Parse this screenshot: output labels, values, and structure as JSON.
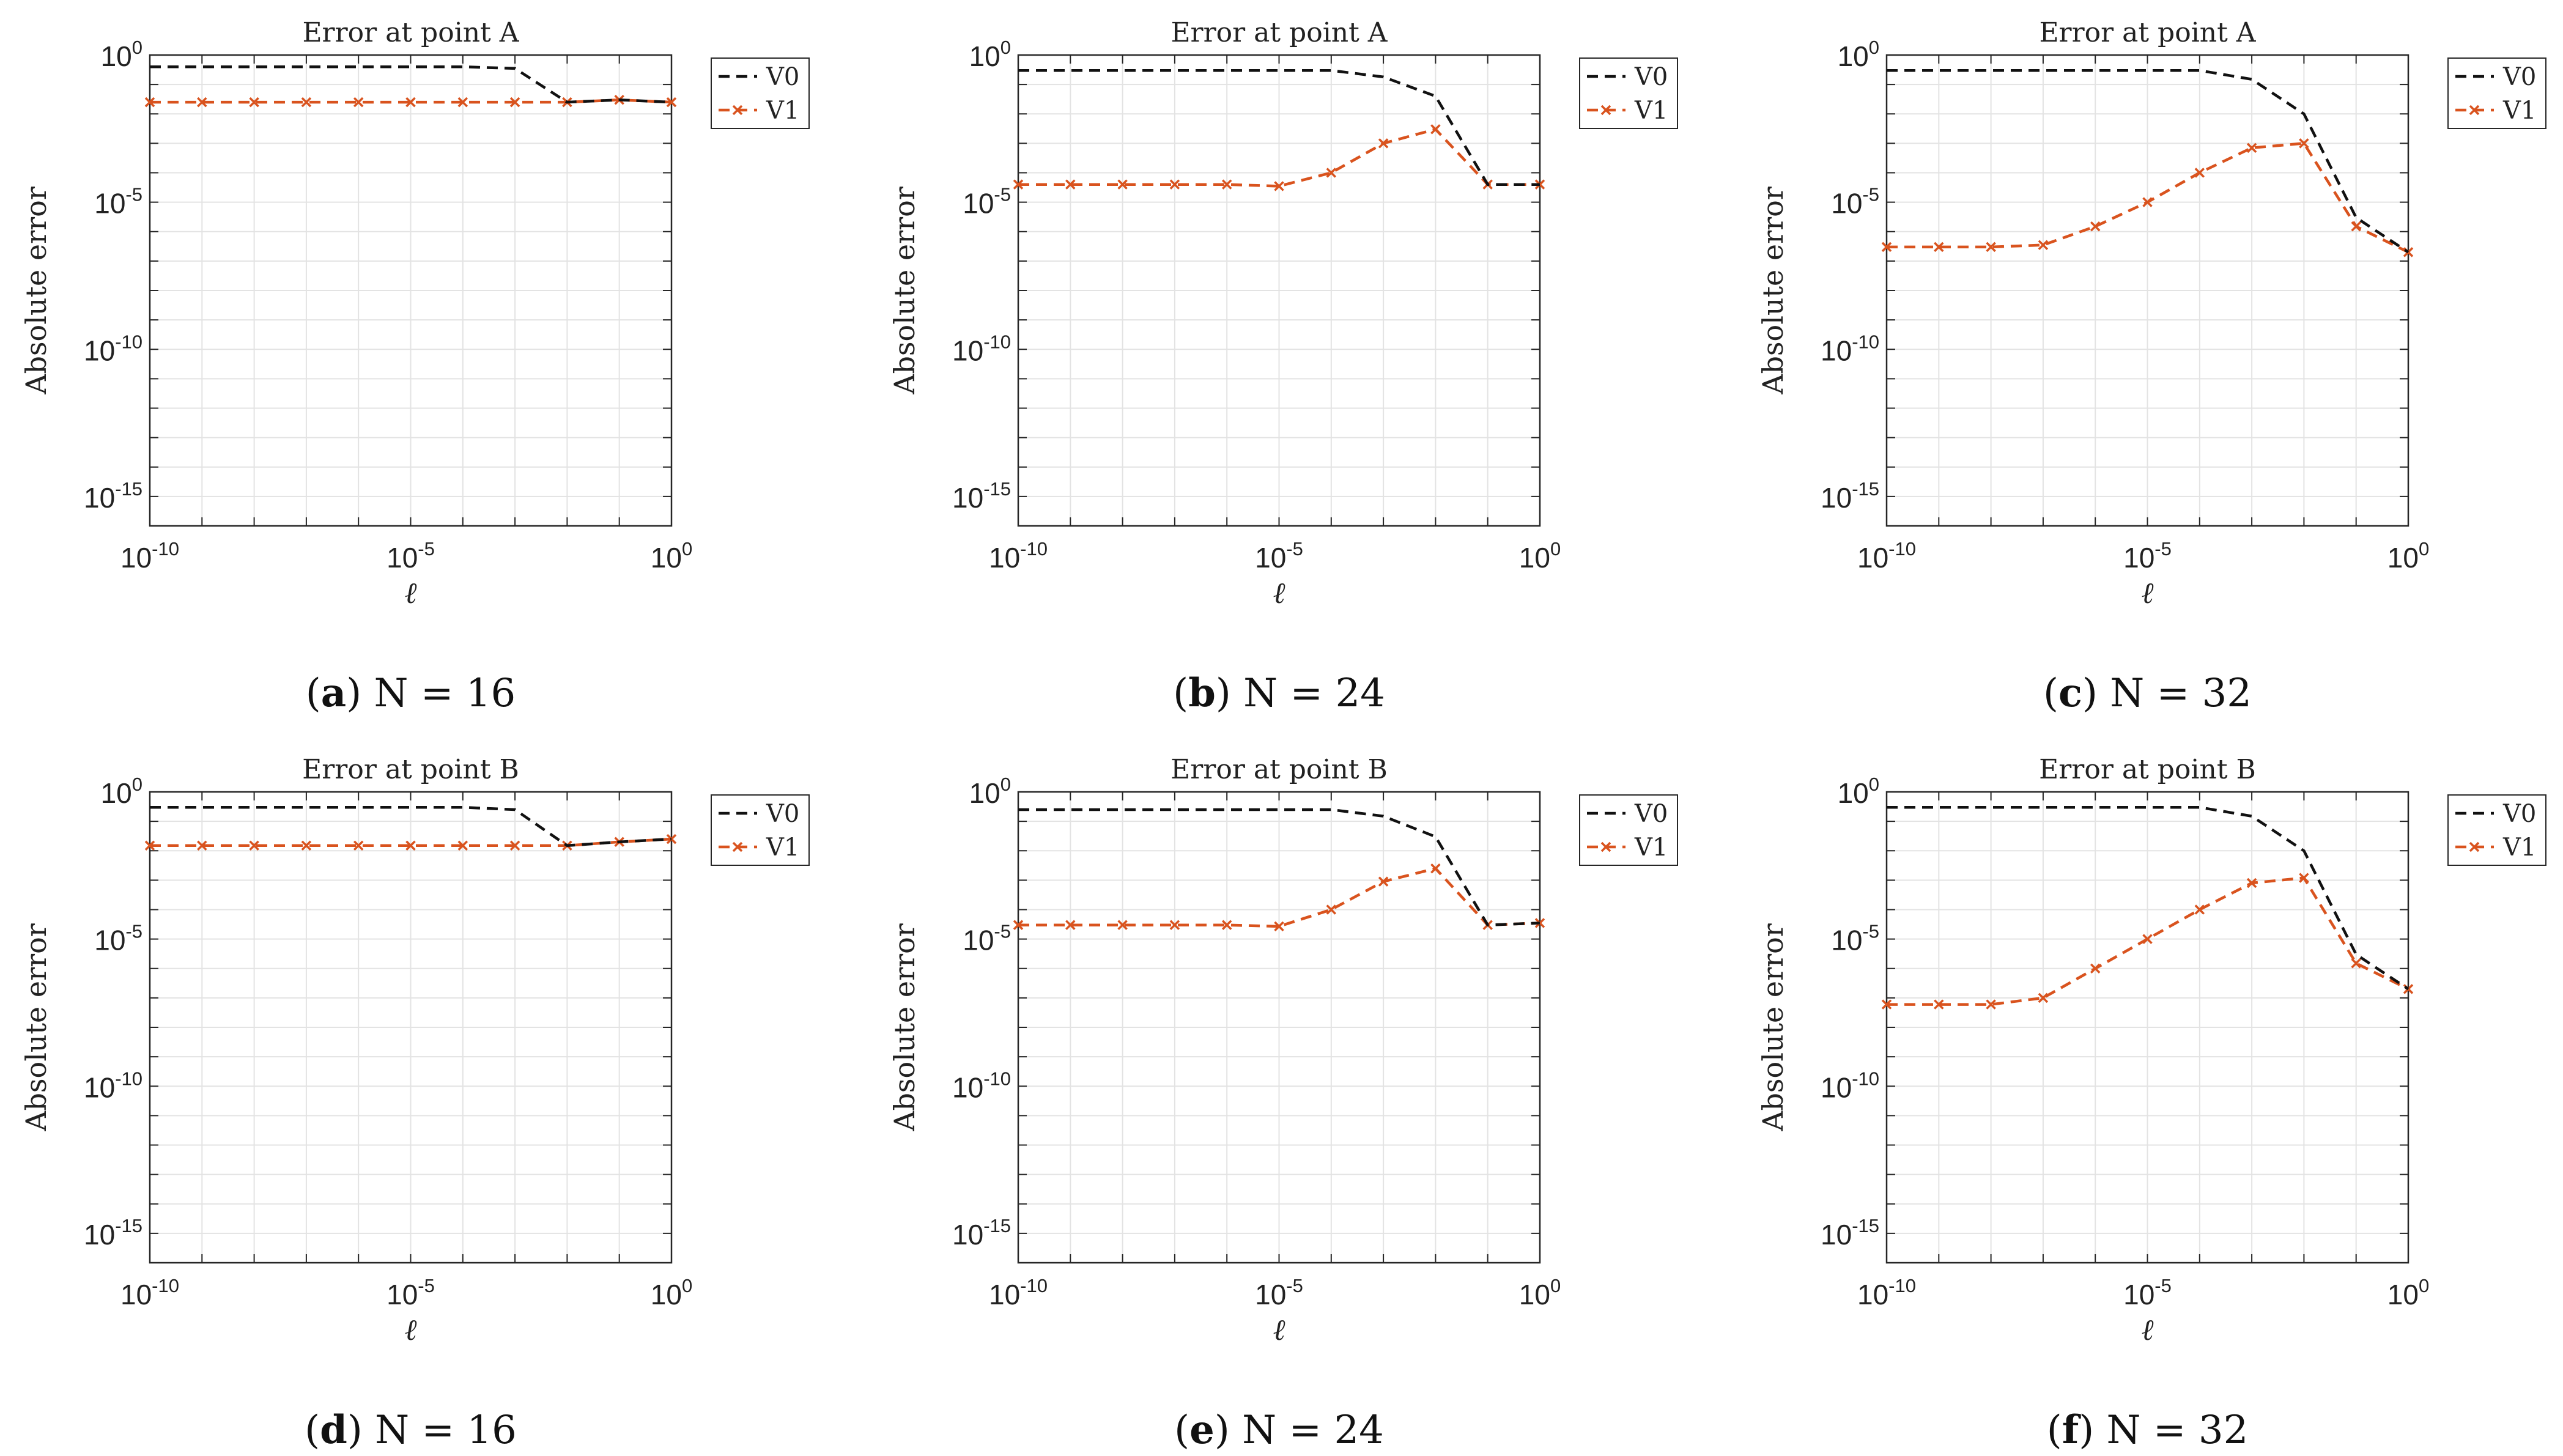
{
  "chart_data": [
    {
      "type": "line",
      "title": "Error at point A",
      "caption_letter": "a",
      "caption_text": "N = 16",
      "xlabel": "ℓ",
      "ylabel": "Absolute error",
      "xscale": "log",
      "yscale": "log",
      "xlim": [
        1e-10,
        1
      ],
      "ylim": [
        1e-16,
        1
      ],
      "xticks": [
        {
          "base": "10",
          "exp": "-10",
          "value": 1e-10
        },
        {
          "base": "10",
          "exp": "-5",
          "value": 1e-05
        },
        {
          "base": "10",
          "exp": "0",
          "value": 1
        }
      ],
      "yticks": [
        {
          "base": "10",
          "exp": "0",
          "value": 1
        },
        {
          "base": "10",
          "exp": "-5",
          "value": 1e-05
        },
        {
          "base": "10",
          "exp": "-10",
          "value": 1e-10
        },
        {
          "base": "10",
          "exp": "-15",
          "value": 1e-15
        }
      ],
      "grid": true,
      "legend_position": "outside-right-top",
      "x": [
        1e-10,
        1e-09,
        1e-08,
        1e-07,
        1e-06,
        1e-05,
        0.0001,
        0.001,
        0.01,
        0.1,
        1
      ],
      "series": [
        {
          "name": "V0",
          "color": "#111111",
          "style": "dashed",
          "marker": "none",
          "values": [
            0.4,
            0.4,
            0.4,
            0.4,
            0.4,
            0.4,
            0.4,
            0.35,
            0.025,
            0.03,
            0.025
          ]
        },
        {
          "name": "V1",
          "color": "#d9531e",
          "style": "dashed",
          "marker": "x",
          "values": [
            0.025,
            0.025,
            0.025,
            0.025,
            0.025,
            0.025,
            0.025,
            0.025,
            0.025,
            0.03,
            0.025
          ]
        }
      ]
    },
    {
      "type": "line",
      "title": "Error at point A",
      "caption_letter": "b",
      "caption_text": "N = 24",
      "xlabel": "ℓ",
      "ylabel": "Absolute error",
      "xscale": "log",
      "yscale": "log",
      "xlim": [
        1e-10,
        1
      ],
      "ylim": [
        1e-16,
        1
      ],
      "xticks": [
        {
          "base": "10",
          "exp": "-10",
          "value": 1e-10
        },
        {
          "base": "10",
          "exp": "-5",
          "value": 1e-05
        },
        {
          "base": "10",
          "exp": "0",
          "value": 1
        }
      ],
      "yticks": [
        {
          "base": "10",
          "exp": "0",
          "value": 1
        },
        {
          "base": "10",
          "exp": "-5",
          "value": 1e-05
        },
        {
          "base": "10",
          "exp": "-10",
          "value": 1e-10
        },
        {
          "base": "10",
          "exp": "-15",
          "value": 1e-15
        }
      ],
      "grid": true,
      "legend_position": "outside-right-top",
      "x": [
        1e-10,
        1e-09,
        1e-08,
        1e-07,
        1e-06,
        1e-05,
        0.0001,
        0.001,
        0.01,
        0.1,
        1
      ],
      "series": [
        {
          "name": "V0",
          "color": "#111111",
          "style": "dashed",
          "marker": "none",
          "values": [
            0.3,
            0.3,
            0.3,
            0.3,
            0.3,
            0.3,
            0.3,
            0.18,
            0.04,
            4e-05,
            4e-05
          ]
        },
        {
          "name": "V1",
          "color": "#d9531e",
          "style": "dashed",
          "marker": "x",
          "values": [
            4e-05,
            4e-05,
            4e-05,
            4e-05,
            4e-05,
            3.5e-05,
            0.0001,
            0.001,
            0.003,
            4e-05,
            4e-05
          ]
        }
      ]
    },
    {
      "type": "line",
      "title": "Error at point A",
      "caption_letter": "c",
      "caption_text": "N = 32",
      "xlabel": "ℓ",
      "ylabel": "Absolute error",
      "xscale": "log",
      "yscale": "log",
      "xlim": [
        1e-10,
        1
      ],
      "ylim": [
        1e-16,
        1
      ],
      "xticks": [
        {
          "base": "10",
          "exp": "-10",
          "value": 1e-10
        },
        {
          "base": "10",
          "exp": "-5",
          "value": 1e-05
        },
        {
          "base": "10",
          "exp": "0",
          "value": 1
        }
      ],
      "yticks": [
        {
          "base": "10",
          "exp": "0",
          "value": 1
        },
        {
          "base": "10",
          "exp": "-5",
          "value": 1e-05
        },
        {
          "base": "10",
          "exp": "-10",
          "value": 1e-10
        },
        {
          "base": "10",
          "exp": "-15",
          "value": 1e-15
        }
      ],
      "grid": true,
      "legend_position": "outside-right-top",
      "x": [
        1e-10,
        1e-09,
        1e-08,
        1e-07,
        1e-06,
        1e-05,
        0.0001,
        0.001,
        0.01,
        0.1,
        1
      ],
      "series": [
        {
          "name": "V0",
          "color": "#111111",
          "style": "dashed",
          "marker": "none",
          "values": [
            0.3,
            0.3,
            0.3,
            0.3,
            0.3,
            0.3,
            0.3,
            0.15,
            0.01,
            3e-06,
            2e-07
          ]
        },
        {
          "name": "V1",
          "color": "#d9531e",
          "style": "dashed",
          "marker": "x",
          "values": [
            3e-07,
            3e-07,
            3e-07,
            3.5e-07,
            1.5e-06,
            1e-05,
            0.0001,
            0.0007,
            0.001,
            1.5e-06,
            2e-07
          ]
        }
      ]
    },
    {
      "type": "line",
      "title": "Error at point B",
      "caption_letter": "d",
      "caption_text": "N = 16",
      "xlabel": "ℓ",
      "ylabel": "Absolute error",
      "xscale": "log",
      "yscale": "log",
      "xlim": [
        1e-10,
        1
      ],
      "ylim": [
        1e-16,
        1
      ],
      "xticks": [
        {
          "base": "10",
          "exp": "-10",
          "value": 1e-10
        },
        {
          "base": "10",
          "exp": "-5",
          "value": 1e-05
        },
        {
          "base": "10",
          "exp": "0",
          "value": 1
        }
      ],
      "yticks": [
        {
          "base": "10",
          "exp": "0",
          "value": 1
        },
        {
          "base": "10",
          "exp": "-5",
          "value": 1e-05
        },
        {
          "base": "10",
          "exp": "-10",
          "value": 1e-10
        },
        {
          "base": "10",
          "exp": "-15",
          "value": 1e-15
        }
      ],
      "grid": true,
      "legend_position": "outside-right-top",
      "x": [
        1e-10,
        1e-09,
        1e-08,
        1e-07,
        1e-06,
        1e-05,
        0.0001,
        0.001,
        0.01,
        0.1,
        1
      ],
      "series": [
        {
          "name": "V0",
          "color": "#111111",
          "style": "dashed",
          "marker": "none",
          "values": [
            0.3,
            0.3,
            0.3,
            0.3,
            0.3,
            0.3,
            0.3,
            0.25,
            0.015,
            0.02,
            0.025
          ]
        },
        {
          "name": "V1",
          "color": "#d9531e",
          "style": "dashed",
          "marker": "x",
          "values": [
            0.015,
            0.015,
            0.015,
            0.015,
            0.015,
            0.015,
            0.015,
            0.015,
            0.015,
            0.02,
            0.025
          ]
        }
      ]
    },
    {
      "type": "line",
      "title": "Error at point B",
      "caption_letter": "e",
      "caption_text": "N = 24",
      "xlabel": "ℓ",
      "ylabel": "Absolute error",
      "xscale": "log",
      "yscale": "log",
      "xlim": [
        1e-10,
        1
      ],
      "ylim": [
        1e-16,
        1
      ],
      "xticks": [
        {
          "base": "10",
          "exp": "-10",
          "value": 1e-10
        },
        {
          "base": "10",
          "exp": "-5",
          "value": 1e-05
        },
        {
          "base": "10",
          "exp": "0",
          "value": 1
        }
      ],
      "yticks": [
        {
          "base": "10",
          "exp": "0",
          "value": 1
        },
        {
          "base": "10",
          "exp": "-5",
          "value": 1e-05
        },
        {
          "base": "10",
          "exp": "-10",
          "value": 1e-10
        },
        {
          "base": "10",
          "exp": "-15",
          "value": 1e-15
        }
      ],
      "grid": true,
      "legend_position": "outside-right-top",
      "x": [
        1e-10,
        1e-09,
        1e-08,
        1e-07,
        1e-06,
        1e-05,
        0.0001,
        0.001,
        0.01,
        0.1,
        1
      ],
      "series": [
        {
          "name": "V0",
          "color": "#111111",
          "style": "dashed",
          "marker": "none",
          "values": [
            0.25,
            0.25,
            0.25,
            0.25,
            0.25,
            0.25,
            0.25,
            0.15,
            0.03,
            3e-05,
            3.5e-05
          ]
        },
        {
          "name": "V1",
          "color": "#d9531e",
          "style": "dashed",
          "marker": "x",
          "values": [
            3e-05,
            3e-05,
            3e-05,
            3e-05,
            3e-05,
            2.7e-05,
            0.0001,
            0.0009,
            0.0025,
            3e-05,
            3.5e-05
          ]
        }
      ]
    },
    {
      "type": "line",
      "title": "Error at point B",
      "caption_letter": "f",
      "caption_text": "N = 32",
      "xlabel": "ℓ",
      "ylabel": "Absolute error",
      "xscale": "log",
      "yscale": "log",
      "xlim": [
        1e-10,
        1
      ],
      "ylim": [
        1e-16,
        1
      ],
      "xticks": [
        {
          "base": "10",
          "exp": "-10",
          "value": 1e-10
        },
        {
          "base": "10",
          "exp": "-5",
          "value": 1e-05
        },
        {
          "base": "10",
          "exp": "0",
          "value": 1
        }
      ],
      "yticks": [
        {
          "base": "10",
          "exp": "0",
          "value": 1
        },
        {
          "base": "10",
          "exp": "-5",
          "value": 1e-05
        },
        {
          "base": "10",
          "exp": "-10",
          "value": 1e-10
        },
        {
          "base": "10",
          "exp": "-15",
          "value": 1e-15
        }
      ],
      "grid": true,
      "legend_position": "outside-right-top",
      "x": [
        1e-10,
        1e-09,
        1e-08,
        1e-07,
        1e-06,
        1e-05,
        0.0001,
        0.001,
        0.01,
        0.1,
        1
      ],
      "series": [
        {
          "name": "V0",
          "color": "#111111",
          "style": "dashed",
          "marker": "none",
          "values": [
            0.3,
            0.3,
            0.3,
            0.3,
            0.3,
            0.3,
            0.3,
            0.15,
            0.01,
            3e-06,
            2e-07
          ]
        },
        {
          "name": "V1",
          "color": "#d9531e",
          "style": "dashed",
          "marker": "x",
          "values": [
            6e-08,
            6e-08,
            6e-08,
            1e-07,
            1e-06,
            1e-05,
            0.0001,
            0.0008,
            0.0012,
            1.5e-06,
            2e-07
          ]
        }
      ]
    }
  ]
}
